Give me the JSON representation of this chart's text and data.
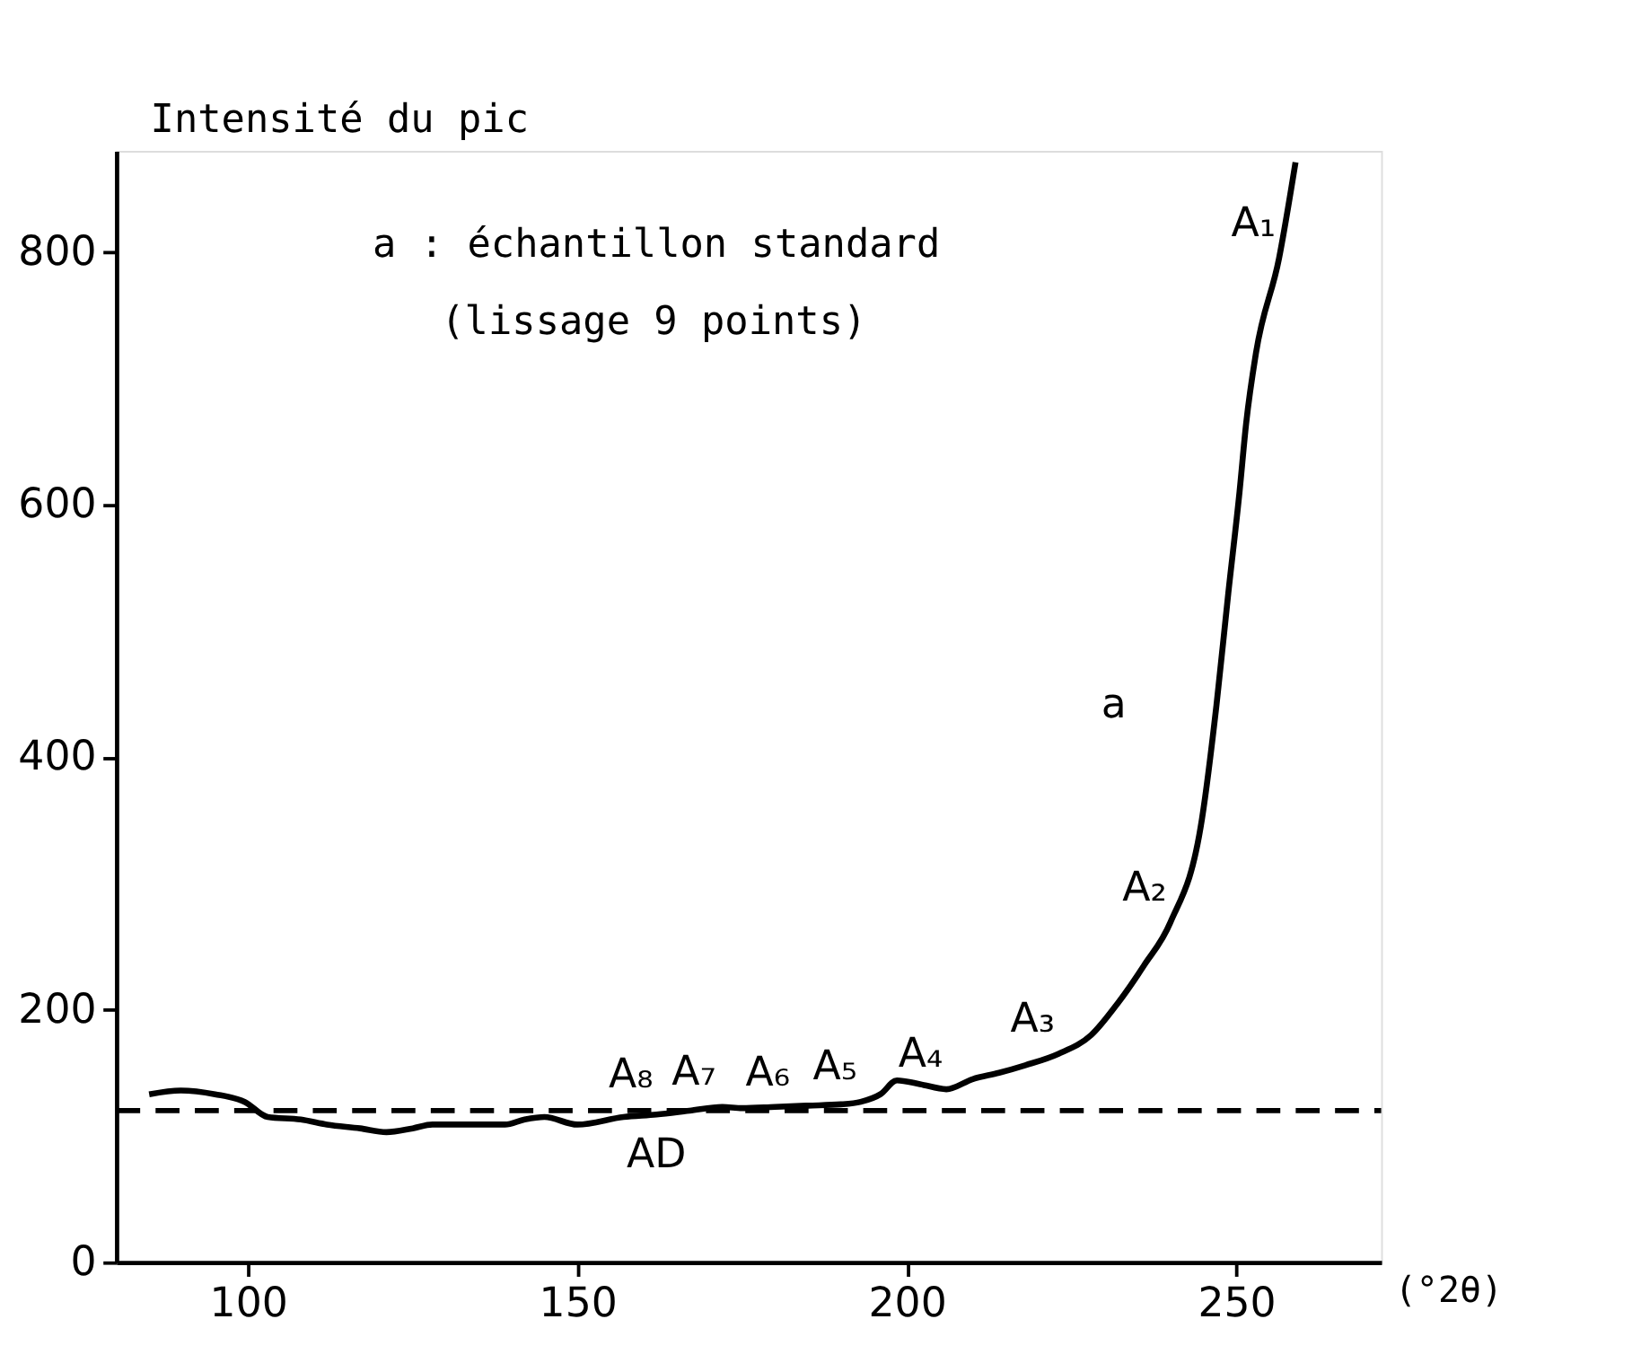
{
  "chart_data": {
    "type": "line",
    "xlabel": "(°2θ)",
    "ylabel": "Intensité du pic",
    "xlim": [
      80,
      272
    ],
    "ylim": [
      0,
      880
    ],
    "xticks": [
      100,
      150,
      200,
      250
    ],
    "yticks": [
      0,
      200,
      400,
      600,
      800
    ],
    "grid": false,
    "line_style": "solid",
    "marker": "none",
    "x": [
      85,
      89.8,
      95,
      99.5,
      103,
      108,
      112,
      117,
      121,
      125,
      128,
      134,
      139,
      142,
      145,
      150,
      157,
      162,
      167,
      172,
      175,
      180,
      185,
      190,
      193,
      196,
      198.5,
      202,
      206,
      210,
      214,
      218,
      223,
      228,
      232,
      236,
      240,
      244.8,
      247,
      248.8,
      250.5,
      251.5,
      253,
      256.5,
      259
    ],
    "series": [
      {
        "name": "a",
        "color": "#000000",
        "values": [
          133,
          136,
          133,
          127,
          115,
          113,
          109,
          106,
          103,
          106,
          109,
          109,
          109,
          113,
          115,
          109,
          115,
          117,
          120,
          123,
          122,
          123,
          124,
          125,
          127,
          133,
          144,
          141,
          137,
          145,
          150,
          156,
          165,
          180,
          205,
          235,
          269,
          351,
          441,
          530,
          610,
          664,
          720,
          795,
          871
        ]
      }
    ],
    "ref_lines": [
      {
        "axis": "y",
        "value": 120,
        "label": null,
        "line_style": "dashed",
        "color": "#000000"
      }
    ],
    "annotations": [
      "a : échantillon standard",
      "(lissage 9 points)",
      {
        "text": "A₁",
        "x": 256.5,
        "y": 795
      },
      {
        "text": "A₂",
        "x": 240,
        "y": 269
      },
      {
        "text": "A₃",
        "x": 223,
        "y": 165
      },
      {
        "text": "A₄",
        "x": 206,
        "y": 137
      },
      {
        "text": "A₅",
        "x": 193,
        "y": 127
      },
      {
        "text": "A₆",
        "x": 175,
        "y": 122
      },
      {
        "text": "A₇",
        "x": 171.6,
        "y": 123
      },
      {
        "text": "A₈",
        "x": 162,
        "y": 121
      },
      {
        "text": "AD",
        "x": 162,
        "y": 117
      }
    ]
  }
}
